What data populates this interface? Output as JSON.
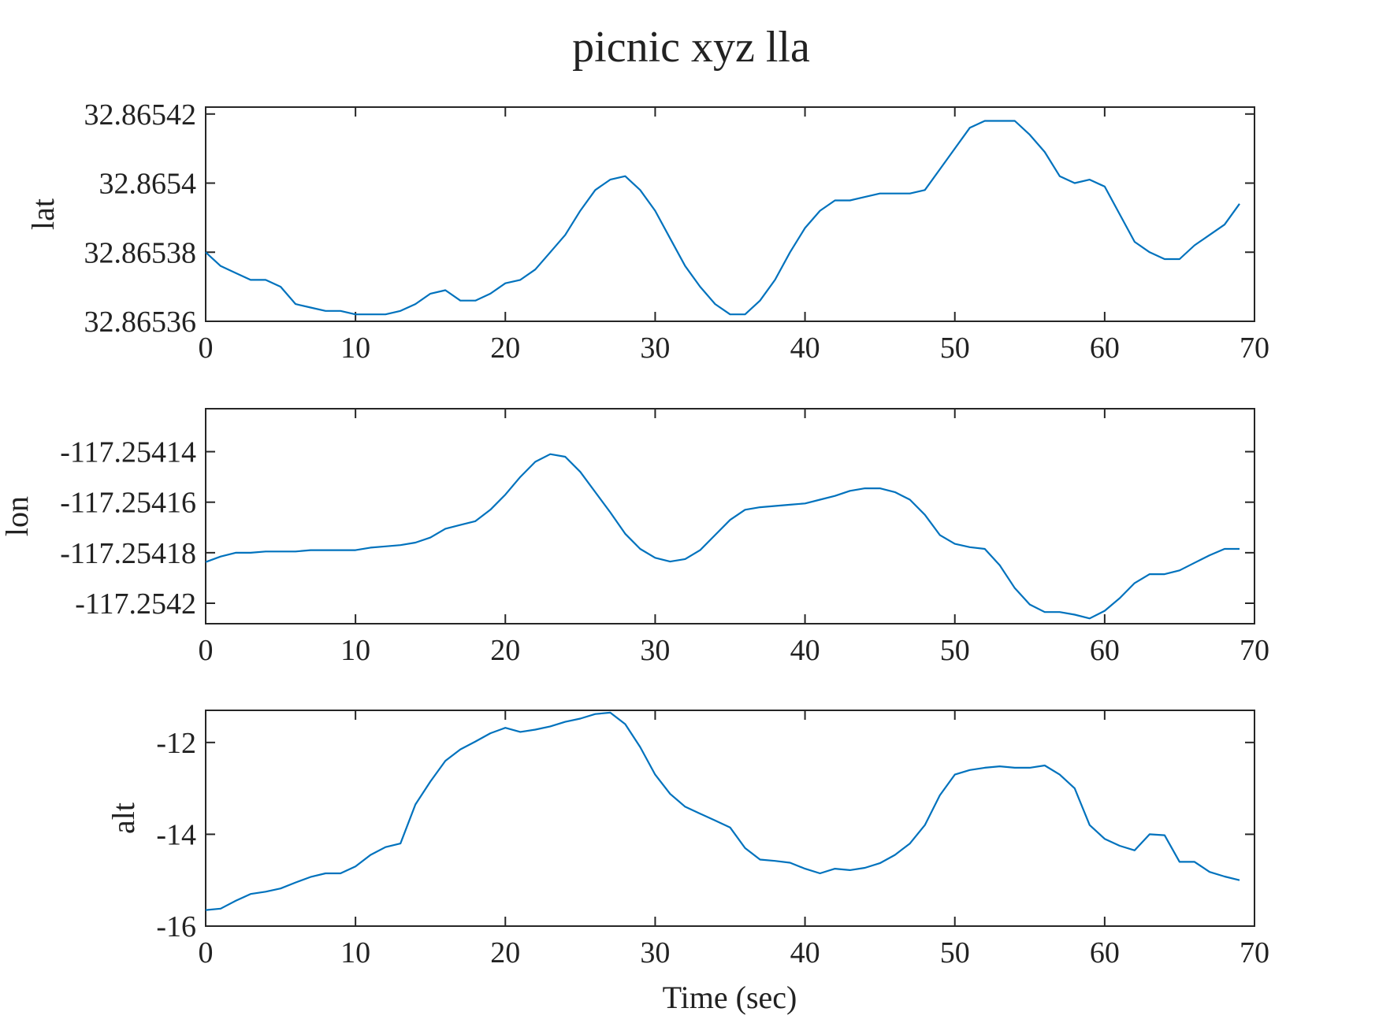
{
  "chart_data": {
    "title": "picnic xyz lla",
    "type": "line",
    "line_color": "#0072BD",
    "shared_x": {
      "label": "Time (sec)",
      "range": [
        0,
        70
      ],
      "ticks": [
        0,
        10,
        20,
        30,
        40,
        50,
        60,
        70
      ],
      "tick_labels": [
        "0",
        "10",
        "20",
        "30",
        "40",
        "50",
        "60",
        "70"
      ]
    },
    "panels": [
      {
        "ylabel": "lat",
        "ylim": [
          32.86536,
          32.865422
        ],
        "yticks": [
          32.86536,
          32.86538,
          32.8654,
          32.86542
        ],
        "ytick_labels": [
          "32.86536",
          "32.86538",
          "32.8654",
          "32.86542"
        ],
        "x": [
          0,
          1,
          2,
          3,
          4,
          5,
          6,
          7,
          8,
          9,
          10,
          11,
          12,
          13,
          14,
          15,
          16,
          17,
          18,
          19,
          20,
          21,
          22,
          23,
          24,
          25,
          26,
          27,
          28,
          29,
          30,
          31,
          32,
          33,
          34,
          35,
          36,
          37,
          38,
          39,
          40,
          41,
          42,
          43,
          44,
          45,
          46,
          47,
          48,
          49,
          50,
          51,
          52,
          53,
          54,
          55,
          56,
          57,
          58,
          59,
          60,
          61,
          62,
          63,
          64,
          65,
          66,
          67,
          68,
          69
        ],
        "y": [
          32.86538,
          32.865376,
          32.865374,
          32.865372,
          32.865372,
          32.86537,
          32.865365,
          32.865364,
          32.865363,
          32.865363,
          32.865362,
          32.865362,
          32.865362,
          32.865363,
          32.865365,
          32.865368,
          32.865369,
          32.865366,
          32.865366,
          32.865368,
          32.865371,
          32.865372,
          32.865375,
          32.86538,
          32.865385,
          32.865392,
          32.865398,
          32.865401,
          32.865402,
          32.865398,
          32.865392,
          32.865384,
          32.865376,
          32.86537,
          32.865365,
          32.865362,
          32.865362,
          32.865366,
          32.865372,
          32.86538,
          32.865387,
          32.865392,
          32.865395,
          32.865395,
          32.865396,
          32.865397,
          32.865397,
          32.865397,
          32.865398,
          32.865404,
          32.86541,
          32.865416,
          32.865418,
          32.865418,
          32.865418,
          32.865414,
          32.865409,
          32.865402,
          32.8654,
          32.865401,
          32.865399,
          32.865391,
          32.865383,
          32.86538,
          32.865378,
          32.865378,
          32.865382,
          32.865385,
          32.865388,
          32.865394
        ]
      },
      {
        "ylabel": "lon",
        "ylim": [
          -117.2542081,
          -117.254123
        ],
        "yticks": [
          -117.2542,
          -117.25418,
          -117.25416,
          -117.25414
        ],
        "ytick_labels": [
          "-117.2542",
          "-117.25418",
          "-117.25416",
          "-117.25414"
        ],
        "x": [
          0,
          1,
          2,
          3,
          4,
          5,
          6,
          7,
          8,
          9,
          10,
          11,
          12,
          13,
          14,
          15,
          16,
          17,
          18,
          19,
          20,
          21,
          22,
          23,
          24,
          25,
          26,
          27,
          28,
          29,
          30,
          31,
          32,
          33,
          34,
          35,
          36,
          37,
          38,
          39,
          40,
          41,
          42,
          43,
          44,
          45,
          46,
          47,
          48,
          49,
          50,
          51,
          52,
          53,
          54,
          55,
          56,
          57,
          58,
          59,
          60,
          61,
          62,
          63,
          64,
          65,
          66,
          67,
          68,
          69
        ],
        "y": [
          -117.2541837,
          -117.2541815,
          -117.25418,
          -117.25418,
          -117.2541795,
          -117.2541795,
          -117.2541795,
          -117.254179,
          -117.254179,
          -117.254179,
          -117.254179,
          -117.254178,
          -117.2541775,
          -117.254177,
          -117.254176,
          -117.254174,
          -117.2541705,
          -117.254169,
          -117.2541675,
          -117.254163,
          -117.254157,
          -117.25415,
          -117.254144,
          -117.254141,
          -117.254142,
          -117.254148,
          -117.254156,
          -117.254164,
          -117.2541725,
          -117.2541785,
          -117.254182,
          -117.2541835,
          -117.2541825,
          -117.254179,
          -117.254173,
          -117.254167,
          -117.254163,
          -117.254162,
          -117.2541615,
          -117.254161,
          -117.2541605,
          -117.254159,
          -117.2541575,
          -117.2541555,
          -117.2541545,
          -117.2541545,
          -117.254156,
          -117.254159,
          -117.254165,
          -117.254173,
          -117.2541765,
          -117.2541778,
          -117.2541785,
          -117.254185,
          -117.254194,
          -117.2542005,
          -117.2542035,
          -117.2542035,
          -117.2542045,
          -117.254206,
          -117.254203,
          -117.254198,
          -117.254192,
          -117.2541885,
          -117.2541885,
          -117.254187,
          -117.254184,
          -117.254181,
          -117.2541785,
          -117.2541785
        ]
      },
      {
        "ylabel": "alt",
        "ylim": [
          -16,
          -11.3
        ],
        "yticks": [
          -16,
          -14,
          -12
        ],
        "ytick_labels": [
          "-16",
          "-14",
          "-12"
        ],
        "x": [
          0,
          1,
          2,
          3,
          4,
          5,
          6,
          7,
          8,
          9,
          10,
          11,
          12,
          13,
          14,
          15,
          16,
          17,
          18,
          19,
          20,
          21,
          22,
          23,
          24,
          25,
          26,
          27,
          28,
          29,
          30,
          31,
          32,
          33,
          34,
          35,
          36,
          37,
          38,
          39,
          40,
          41,
          42,
          43,
          44,
          45,
          46,
          47,
          48,
          49,
          50,
          51,
          52,
          53,
          54,
          55,
          56,
          57,
          58,
          59,
          60,
          61,
          62,
          63,
          64,
          65,
          66,
          67,
          68,
          69
        ],
        "y": [
          -15.65,
          -15.62,
          -15.45,
          -15.3,
          -15.25,
          -15.18,
          -15.05,
          -14.93,
          -14.85,
          -14.85,
          -14.7,
          -14.45,
          -14.28,
          -14.2,
          -13.35,
          -12.85,
          -12.4,
          -12.15,
          -11.98,
          -11.8,
          -11.68,
          -11.77,
          -11.72,
          -11.65,
          -11.55,
          -11.48,
          -11.38,
          -11.35,
          -11.6,
          -12.1,
          -12.7,
          -13.12,
          -13.4,
          -13.55,
          -13.7,
          -13.85,
          -14.3,
          -14.55,
          -14.58,
          -14.62,
          -14.75,
          -14.85,
          -14.75,
          -14.78,
          -14.73,
          -14.63,
          -14.45,
          -14.2,
          -13.8,
          -13.15,
          -12.7,
          -12.6,
          -12.55,
          -12.52,
          -12.55,
          -12.55,
          -12.5,
          -12.7,
          -13.0,
          -13.8,
          -14.1,
          -14.25,
          -14.35,
          -14.0,
          -14.02,
          -14.6,
          -14.6,
          -14.82,
          -14.92,
          -15.0
        ]
      }
    ]
  }
}
